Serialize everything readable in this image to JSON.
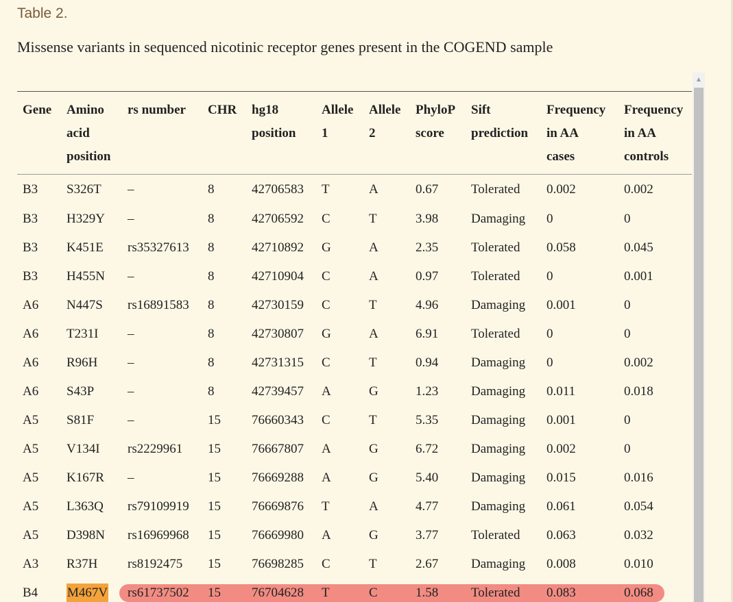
{
  "table_label": "Table 2.",
  "caption": "Missense variants in sequenced nicotinic receptor genes present in the COGEND sample",
  "columns": [
    [
      "Gene"
    ],
    [
      "Amino",
      "acid",
      "position"
    ],
    [
      "rs number"
    ],
    [
      "CHR"
    ],
    [
      "hg18",
      "position"
    ],
    [
      "Allele",
      "1"
    ],
    [
      "Allele",
      "2"
    ],
    [
      "PhyloP",
      "score"
    ],
    [
      "Sift",
      "prediction"
    ],
    [
      "Frequency",
      "in AA",
      "cases"
    ],
    [
      "Frequency",
      "in AA",
      "controls"
    ]
  ],
  "rows": [
    [
      "B3",
      "S326T",
      "–",
      "8",
      "42706583",
      "T",
      "A",
      "0.67",
      "Tolerated",
      "0.002",
      "0.002"
    ],
    [
      "B3",
      "H329Y",
      "–",
      "8",
      "42706592",
      "C",
      "T",
      "3.98",
      "Damaging",
      "0",
      "0"
    ],
    [
      "B3",
      "K451E",
      "rs35327613",
      "8",
      "42710892",
      "G",
      "A",
      "2.35",
      "Tolerated",
      "0.058",
      "0.045"
    ],
    [
      "B3",
      "H455N",
      "–",
      "8",
      "42710904",
      "C",
      "A",
      "0.97",
      "Tolerated",
      "0",
      "0.001"
    ],
    [
      "A6",
      "N447S",
      "rs16891583",
      "8",
      "42730159",
      "C",
      "T",
      "4.96",
      "Damaging",
      "0.001",
      "0"
    ],
    [
      "A6",
      "T231I",
      "–",
      "8",
      "42730807",
      "G",
      "A",
      "6.91",
      "Tolerated",
      "0",
      "0"
    ],
    [
      "A6",
      "R96H",
      "–",
      "8",
      "42731315",
      "C",
      "T",
      "0.94",
      "Damaging",
      "0",
      "0.002"
    ],
    [
      "A6",
      "S43P",
      "–",
      "8",
      "42739457",
      "A",
      "G",
      "1.23",
      "Damaging",
      "0.011",
      "0.018"
    ],
    [
      "A5",
      "S81F",
      "–",
      "15",
      "76660343",
      "C",
      "T",
      "5.35",
      "Damaging",
      "0.001",
      "0"
    ],
    [
      "A5",
      "V134I",
      "rs2229961",
      "15",
      "76667807",
      "A",
      "G",
      "6.72",
      "Damaging",
      "0.002",
      "0"
    ],
    [
      "A5",
      "K167R",
      "–",
      "15",
      "76669288",
      "A",
      "G",
      "5.40",
      "Damaging",
      "0.015",
      "0.016"
    ],
    [
      "A5",
      "L363Q",
      "rs79109919",
      "15",
      "76669876",
      "T",
      "A",
      "4.77",
      "Damaging",
      "0.061",
      "0.054"
    ],
    [
      "A5",
      "D398N",
      "rs16969968",
      "15",
      "76669980",
      "A",
      "G",
      "3.77",
      "Tolerated",
      "0.063",
      "0.032"
    ],
    [
      "A3",
      "R37H",
      "rs8192475",
      "15",
      "76698285",
      "C",
      "T",
      "2.67",
      "Damaging",
      "0.008",
      "0.010"
    ],
    [
      "B4",
      "M467V",
      "rs61737502",
      "15",
      "76704628",
      "T",
      "C",
      "1.58",
      "Tolerated",
      "0.083",
      "0.068"
    ]
  ],
  "highlights": {
    "row_index": 14,
    "amino_acid_color": "#f4a23c",
    "row_color": "#f28c82"
  },
  "scrollbar": {
    "up_arrow": "▲"
  }
}
